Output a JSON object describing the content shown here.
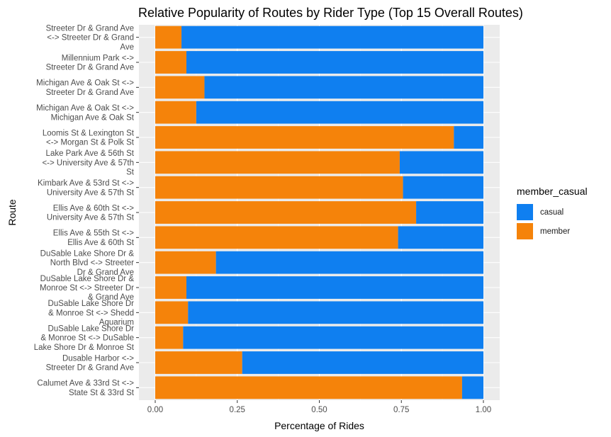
{
  "title": "Relative Popularity of Routes by Rider Type (Top 15 Overall Routes)",
  "chart_data": {
    "type": "bar",
    "orientation": "horizontal",
    "stacked": "percent",
    "xlabel": "Percentage of Rides",
    "ylabel": "Route",
    "xlim": [
      0,
      1
    ],
    "xticks": [
      "0.00",
      "0.25",
      "0.50",
      "0.75",
      "1.00"
    ],
    "grid": true,
    "legend": {
      "title": "member_casual",
      "position": "right",
      "entries": [
        {
          "name": "casual",
          "color": "#0f7ff0"
        },
        {
          "name": "member",
          "color": "#f5830a"
        }
      ]
    },
    "categories": [
      {
        "label": [
          "Streeter Dr & Grand Ave",
          "<-> Streeter Dr & Grand",
          "Ave"
        ]
      },
      {
        "label": [
          "Millennium Park <->",
          "Streeter Dr & Grand Ave"
        ]
      },
      {
        "label": [
          "Michigan Ave & Oak St <->",
          "Streeter Dr & Grand Ave"
        ]
      },
      {
        "label": [
          "Michigan Ave & Oak St <->",
          "Michigan Ave & Oak St"
        ]
      },
      {
        "label": [
          "Loomis St & Lexington St",
          "<-> Morgan St & Polk St"
        ]
      },
      {
        "label": [
          "Lake Park Ave & 56th St",
          "<-> University Ave & 57th",
          "St"
        ]
      },
      {
        "label": [
          "Kimbark Ave & 53rd St <->",
          "University Ave & 57th St"
        ]
      },
      {
        "label": [
          "Ellis Ave & 60th St <->",
          "University Ave & 57th St"
        ]
      },
      {
        "label": [
          "Ellis Ave & 55th St <->",
          "Ellis Ave & 60th St"
        ]
      },
      {
        "label": [
          "DuSable Lake Shore Dr &",
          "North Blvd <-> Streeter",
          "Dr & Grand Ave"
        ]
      },
      {
        "label": [
          "DuSable Lake Shore Dr &",
          "Monroe St <-> Streeter Dr",
          "& Grand Ave"
        ]
      },
      {
        "label": [
          "DuSable Lake Shore Dr",
          "& Monroe St <-> Shedd",
          "Aquarium"
        ]
      },
      {
        "label": [
          "DuSable Lake Shore Dr",
          "& Monroe St <-> DuSable",
          "Lake Shore Dr & Monroe St"
        ]
      },
      {
        "label": [
          "Dusable Harbor <->",
          "Streeter Dr & Grand Ave"
        ]
      },
      {
        "label": [
          "Calumet Ave & 33rd St <->",
          "State St & 33rd St"
        ]
      }
    ],
    "series": [
      {
        "name": "member",
        "values": [
          0.08,
          0.095,
          0.15,
          0.125,
          0.91,
          0.745,
          0.755,
          0.795,
          0.74,
          0.185,
          0.095,
          0.1,
          0.085,
          0.265,
          0.935
        ]
      },
      {
        "name": "casual",
        "values": [
          0.92,
          0.905,
          0.85,
          0.875,
          0.09,
          0.255,
          0.245,
          0.205,
          0.26,
          0.815,
          0.905,
          0.9,
          0.915,
          0.735,
          0.065
        ]
      }
    ]
  }
}
